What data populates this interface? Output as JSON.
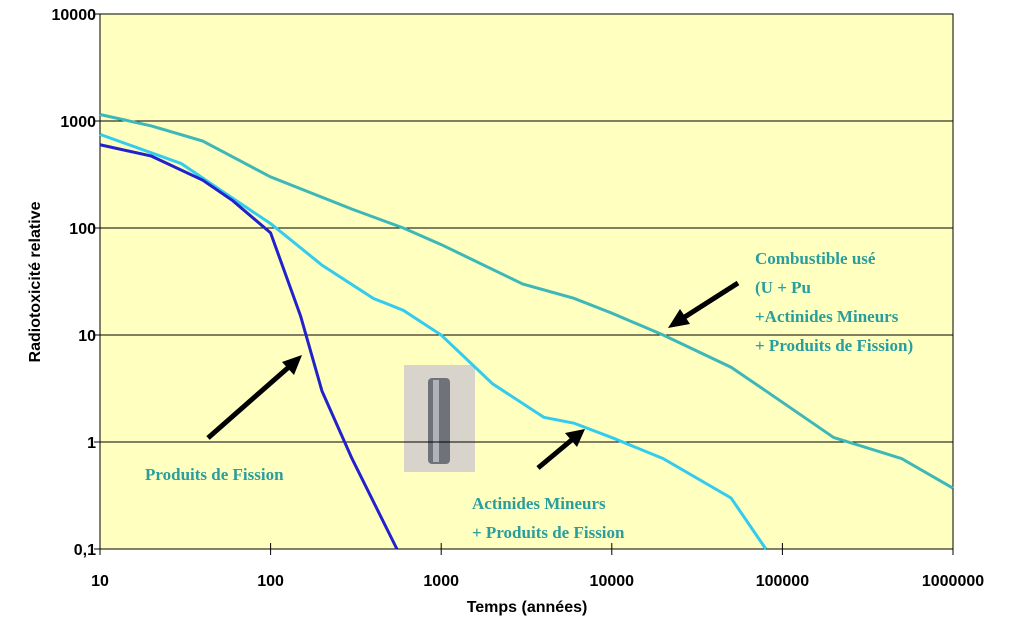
{
  "chart_data": {
    "type": "line",
    "xscale": "log",
    "yscale": "log",
    "grid": true,
    "background": "#ffffc0",
    "xlabel": "Temps (années)",
    "ylabel": "Radiotoxicité relative",
    "xlim": [
      10,
      1000000
    ],
    "xticks": [
      10,
      100,
      1000,
      10000,
      100000,
      1000000
    ],
    "ylim": [
      0.1,
      10000
    ],
    "yticks": [
      {
        "value": 0.1,
        "label": "0,1"
      },
      1,
      10,
      100,
      1000,
      10000
    ],
    "series": [
      {
        "color": "#3cb8b8",
        "x": [
          10,
          20,
          40,
          100,
          300,
          600,
          1000,
          3000,
          6000,
          10000,
          20000,
          50000,
          80000,
          200000,
          500000,
          1000000
        ],
        "values": [
          1150,
          900,
          650,
          300,
          150,
          100,
          70,
          30,
          22,
          16,
          10,
          5,
          3,
          1.1,
          0.7,
          0.37
        ]
      },
      {
        "color": "#33ccee",
        "x": [
          10,
          30,
          50,
          100,
          200,
          400,
          600,
          1000,
          2000,
          4000,
          6000,
          10000,
          20000,
          50000,
          80000
        ],
        "values": [
          750,
          400,
          230,
          110,
          45,
          22,
          17,
          10,
          3.5,
          1.7,
          1.5,
          1.1,
          0.7,
          0.3,
          0.1
        ]
      },
      {
        "color": "#2222cc",
        "x": [
          10,
          20,
          40,
          60,
          100,
          150,
          200,
          300,
          550
        ],
        "values": [
          600,
          470,
          280,
          180,
          90,
          15,
          3,
          0.7,
          0.1
        ]
      }
    ],
    "annotations": [
      {
        "lines": [
          "Combustible usé",
          "(U + Pu",
          "+Actinides Mineurs",
          "+ Produits de Fission)"
        ]
      },
      {
        "lines": [
          "Produits de Fission"
        ]
      },
      {
        "lines": [
          "Actinides Mineurs",
          "+ Produits de Fission"
        ]
      }
    ]
  }
}
